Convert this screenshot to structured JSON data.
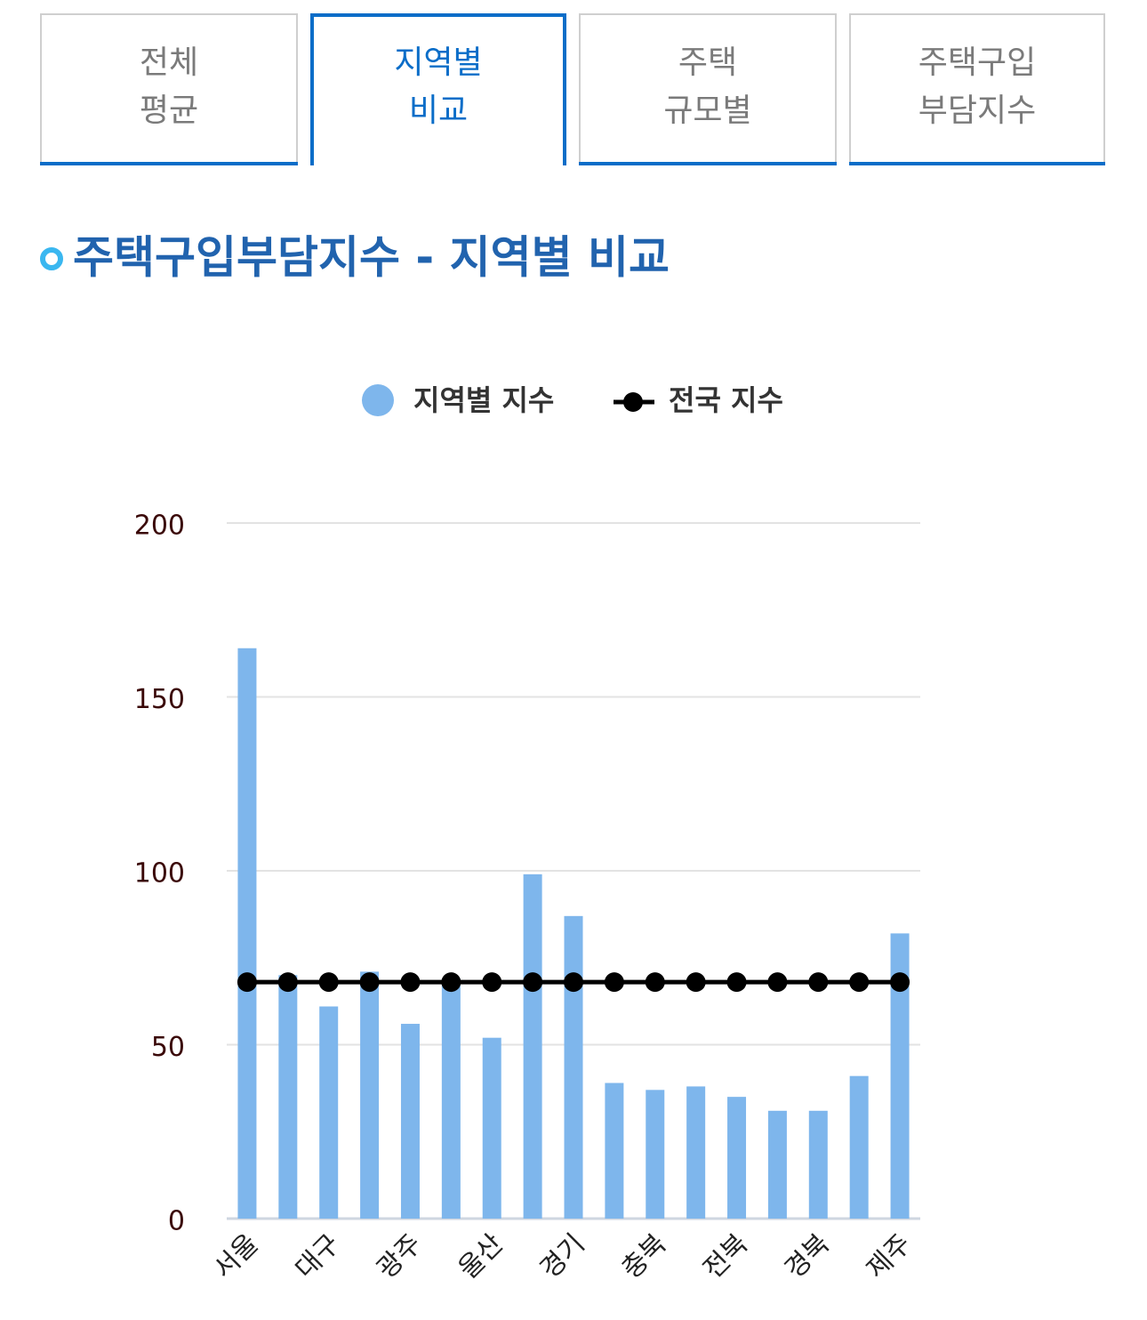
{
  "tabs": [
    {
      "lines": [
        "전체",
        "평균"
      ],
      "active": false
    },
    {
      "lines": [
        "지역별",
        "비교"
      ],
      "active": true
    },
    {
      "lines": [
        "주택",
        "규모별"
      ],
      "active": false
    },
    {
      "lines": [
        "주택구입",
        "부담지수"
      ],
      "active": false
    }
  ],
  "heading": "주택구입부담지수 - 지역별 비교",
  "chart_data": {
    "type": "bar",
    "categories": [
      "서울",
      null,
      "대구",
      null,
      "광주",
      null,
      "울산",
      null,
      "경기",
      null,
      "충북",
      null,
      "전북",
      null,
      "경북",
      null,
      "제주"
    ],
    "series": [
      {
        "name": "지역별 지수",
        "type": "bar",
        "color": "#7eb6ec",
        "values": [
          164,
          70,
          61,
          71,
          56,
          69,
          52,
          99,
          87,
          39,
          37,
          38,
          35,
          31,
          31,
          41,
          82
        ]
      },
      {
        "name": "전국 지수",
        "type": "line",
        "color": "#000000",
        "values": [
          68,
          68,
          68,
          68,
          68,
          68,
          68,
          68,
          68,
          68,
          68,
          68,
          68,
          68,
          68,
          68,
          68
        ]
      }
    ],
    "ylim": [
      0,
      200
    ],
    "yticks": [
      0,
      50,
      100,
      150,
      200
    ],
    "grid": true,
    "legend": "top"
  }
}
